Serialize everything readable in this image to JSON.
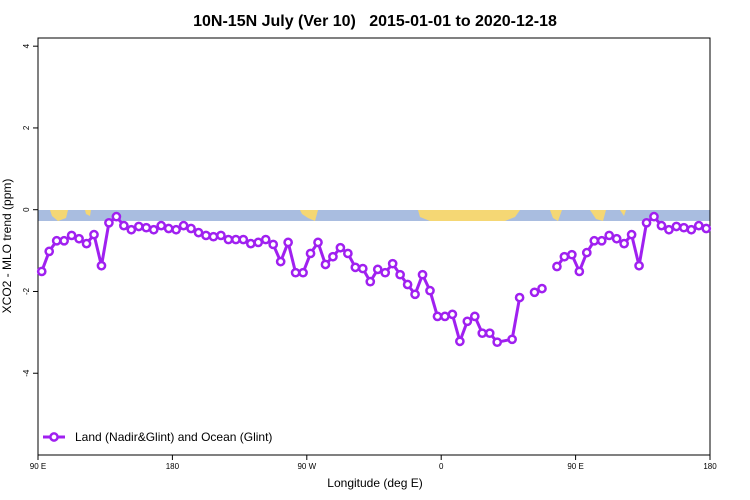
{
  "chart_data": {
    "type": "line",
    "title": "10N-15N July (Ver 10)   2015-01-01 to 2020-12-18",
    "xlabel": "Longitude (deg E)",
    "ylabel": "XCO2 - MLO trend (ppm)",
    "xlim": [
      90,
      540
    ],
    "ylim": [
      -6,
      4.2
    ],
    "xticks": [
      {
        "value": 90,
        "label": "90 E"
      },
      180,
      {
        "value": 270,
        "label": "90 W"
      },
      {
        "value": 360,
        "label": "0"
      },
      {
        "value": 450,
        "label": "90 E"
      },
      {
        "value": 540,
        "label": "180"
      }
    ],
    "yticks": [
      -4,
      -2,
      0,
      2,
      4
    ],
    "legend": "bottom-left",
    "x": [
      92.5,
      97.5,
      102.5,
      107.5,
      112.5,
      117.5,
      122.5,
      127.5,
      132.5,
      137.5,
      142.5,
      147.5,
      152.5,
      157.5,
      162.5,
      167.5,
      172.5,
      177.5,
      182.5,
      187.5,
      192.5,
      197.5,
      202.5,
      207.5,
      212.5,
      217.5,
      222.5,
      227.5,
      232.5,
      237.5,
      242.5,
      247.5,
      252.5,
      257.5,
      262.5,
      267.5,
      272.5,
      277.5,
      282.5,
      287.5,
      292.5,
      297.5,
      302.5,
      307.5,
      312.5,
      317.5,
      322.5,
      327.5,
      332.5,
      337.5,
      342.5,
      347.5,
      352.5,
      357.5,
      362.5,
      367.5,
      372.5,
      377.5,
      382.5,
      387.5,
      392.5,
      397.5,
      407.5,
      412.5,
      417.5,
      422.5,
      427.5,
      432.5,
      437.5,
      442.5,
      447.5,
      452.5,
      457.5,
      462.5,
      467.5,
      472.5,
      477.5,
      482.5,
      487.5,
      492.5,
      497.5,
      502.5,
      507.5,
      512.5,
      517.5,
      522.5,
      527.5,
      532.5,
      537.5
    ],
    "series": [
      {
        "name": "Land (Nadir&Glint) and Ocean (Glint)",
        "color": "#a020f0",
        "values": [
          -1.51,
          -1.02,
          -0.76,
          -0.76,
          -0.63,
          -0.71,
          -0.83,
          -0.61,
          -1.37,
          -0.32,
          -0.17,
          -0.39,
          -0.49,
          -0.41,
          -0.44,
          -0.49,
          -0.39,
          -0.46,
          -0.49,
          -0.39,
          -0.46,
          -0.56,
          -0.63,
          -0.66,
          -0.63,
          -0.73,
          -0.73,
          -0.73,
          -0.83,
          -0.8,
          -0.73,
          -0.85,
          -1.27,
          -0.8,
          -1.54,
          -1.54,
          -1.07,
          -0.8,
          -1.34,
          -1.15,
          -0.93,
          -1.07,
          -1.41,
          -1.44,
          -1.76,
          -1.46,
          -1.54,
          -1.32,
          -1.59,
          -1.83,
          -2.07,
          -1.59,
          -1.98,
          -2.61,
          -2.61,
          -2.56,
          -3.22,
          -2.73,
          -2.61,
          -3.02,
          -3.02,
          -3.24,
          -3.17,
          -2.15,
          null,
          -2.02,
          -1.93,
          null,
          -1.39,
          -1.15,
          -1.1,
          -1.51,
          -1.05,
          -0.76,
          -0.76,
          -0.63,
          -0.71,
          -0.83,
          -0.61,
          -1.37,
          -0.32,
          -0.17,
          -0.39,
          -0.49,
          -0.41,
          -0.44,
          -0.49,
          -0.39,
          -0.46
        ]
      }
    ]
  }
}
